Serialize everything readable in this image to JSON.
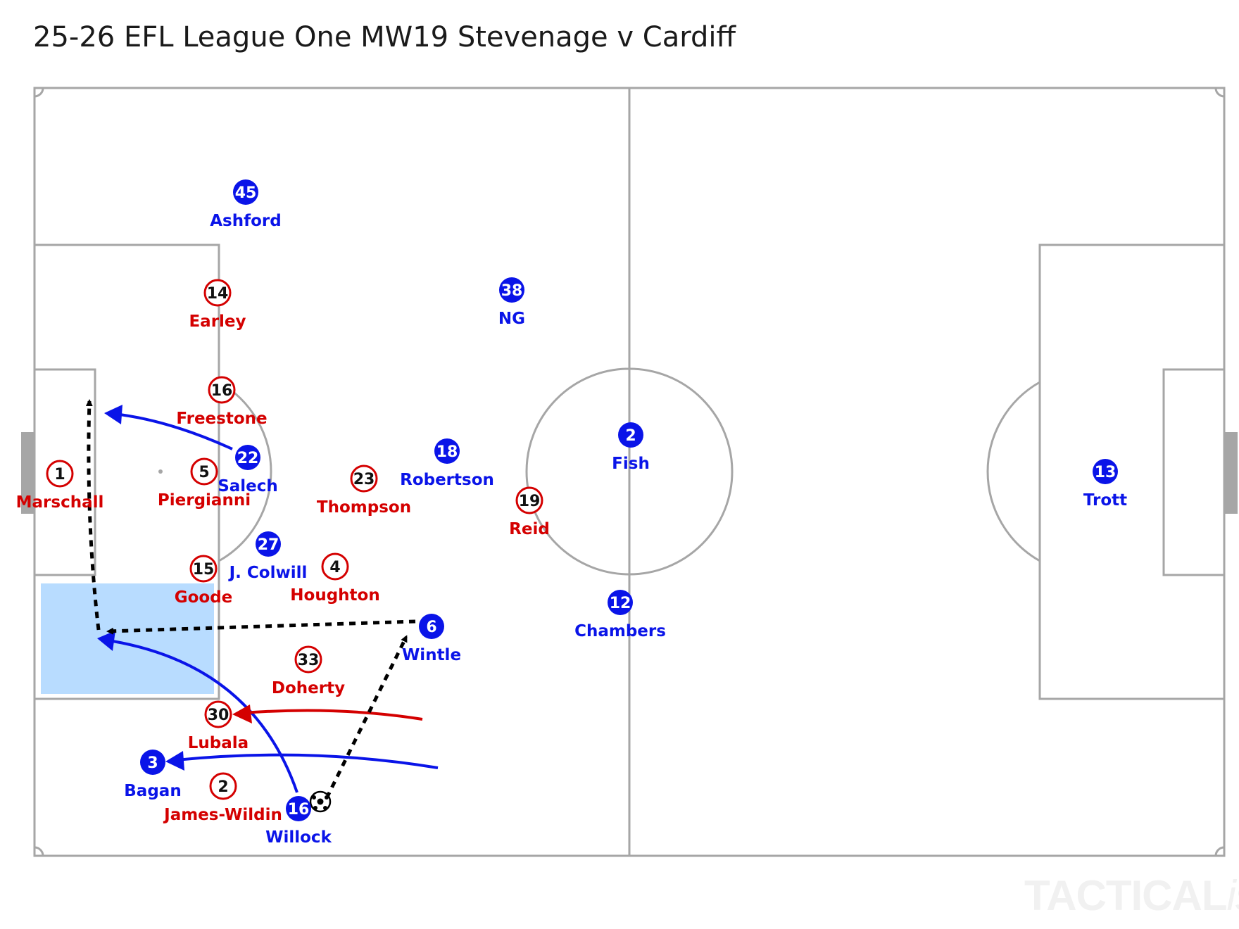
{
  "title": "25-26 EFL League One MW19 Stevenage v Cardiff",
  "watermark": {
    "main": "TACTICAL",
    "suffix": "ista"
  },
  "colors": {
    "home": "#d40000",
    "away": "#0a14e8",
    "pitch_lines": "#a6a6a6",
    "zone_fill": "#b8dcff",
    "pass": "#000000"
  },
  "players": [
    {
      "id": "ashford",
      "team": "away",
      "number": "45",
      "name": "Ashford"
    },
    {
      "id": "earley",
      "team": "home",
      "number": "14",
      "name": "Earley"
    },
    {
      "id": "ng",
      "team": "away",
      "number": "38",
      "name": "NG"
    },
    {
      "id": "freestone",
      "team": "home",
      "number": "16",
      "name": "Freestone"
    },
    {
      "id": "salech",
      "team": "away",
      "number": "22",
      "name": "Salech"
    },
    {
      "id": "marschall",
      "team": "home",
      "number": "1",
      "name": "Marschall"
    },
    {
      "id": "piergianni",
      "team": "home",
      "number": "5",
      "name": "Piergianni"
    },
    {
      "id": "thompson",
      "team": "home",
      "number": "23",
      "name": "Thompson"
    },
    {
      "id": "robertson",
      "team": "away",
      "number": "18",
      "name": "Robertson"
    },
    {
      "id": "fish",
      "team": "away",
      "number": "2",
      "name": "Fish"
    },
    {
      "id": "reid",
      "team": "home",
      "number": "19",
      "name": "Reid"
    },
    {
      "id": "trott",
      "team": "away",
      "number": "13",
      "name": "Trott"
    },
    {
      "id": "jcolwill",
      "team": "away",
      "number": "27",
      "name": "J. Colwill"
    },
    {
      "id": "goode",
      "team": "home",
      "number": "15",
      "name": "Goode"
    },
    {
      "id": "houghton",
      "team": "home",
      "number": "4",
      "name": "Houghton"
    },
    {
      "id": "chambers",
      "team": "away",
      "number": "12",
      "name": "Chambers"
    },
    {
      "id": "wintle",
      "team": "away",
      "number": "6",
      "name": "Wintle"
    },
    {
      "id": "doherty",
      "team": "home",
      "number": "33",
      "name": "Doherty"
    },
    {
      "id": "lubala",
      "team": "home",
      "number": "30",
      "name": "Lubala"
    },
    {
      "id": "bagan",
      "team": "away",
      "number": "3",
      "name": "Bagan"
    },
    {
      "id": "jameswildin",
      "team": "home",
      "number": "2",
      "name": "James-Wildin"
    },
    {
      "id": "willock",
      "team": "away",
      "number": "16",
      "name": "Willock"
    }
  ]
}
